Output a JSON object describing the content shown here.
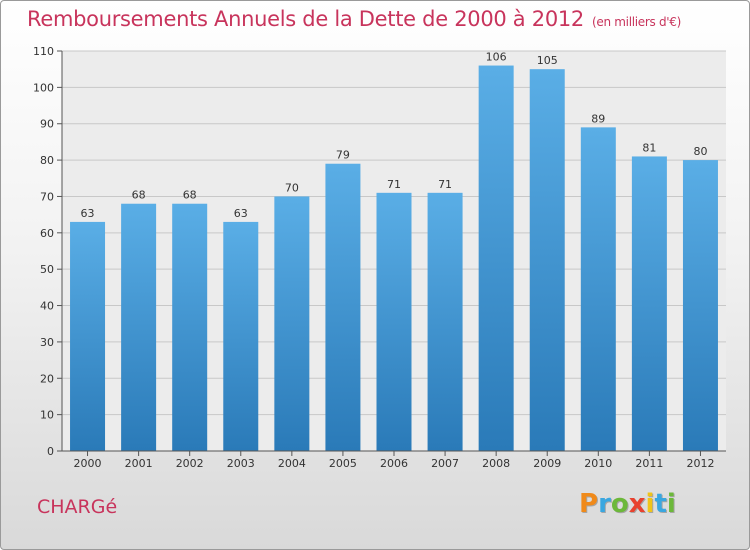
{
  "title": "Remboursements Annuels de la Dette de 2000 à 2012",
  "unit_note": "(en milliers d'€)",
  "place": "CHARGé",
  "logo": {
    "text": "Proxiti",
    "letters": [
      {
        "ch": "P",
        "color": "#f08a1a"
      },
      {
        "ch": "r",
        "color": "#3aa7e0"
      },
      {
        "ch": "o",
        "color": "#6cb83a"
      },
      {
        "ch": "x",
        "color": "#e8422f"
      },
      {
        "ch": "i",
        "color": "#f0c419"
      },
      {
        "ch": "t",
        "color": "#3aa7e0"
      },
      {
        "ch": "i",
        "color": "#6cb83a"
      }
    ]
  },
  "colors": {
    "title": "#c8345c",
    "bar_top": "#5aaee6",
    "bar_bottom": "#2a7ab8"
  },
  "chart_data": {
    "type": "bar",
    "categories": [
      "2000",
      "2001",
      "2002",
      "2003",
      "2004",
      "2005",
      "2006",
      "2007",
      "2008",
      "2009",
      "2010",
      "2011",
      "2012"
    ],
    "values": [
      63,
      68,
      68,
      63,
      70,
      79,
      71,
      71,
      106,
      105,
      89,
      81,
      80
    ],
    "ylim": [
      0,
      110
    ],
    "yticks": [
      0,
      10,
      20,
      30,
      40,
      50,
      60,
      70,
      80,
      90,
      100,
      110
    ],
    "grid": true,
    "data_labels": true
  }
}
